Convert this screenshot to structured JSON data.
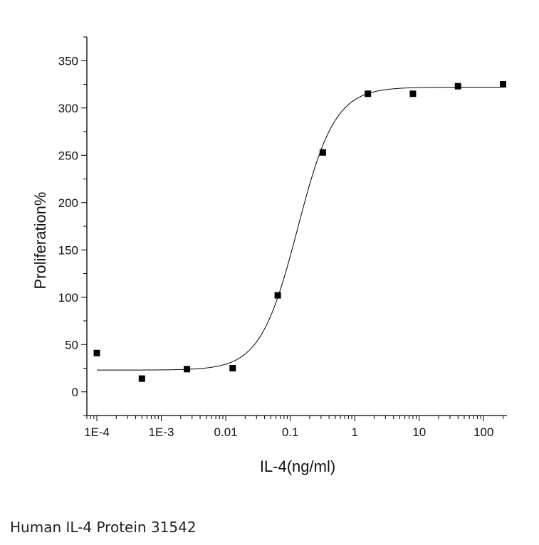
{
  "caption": "Human IL-4 Protein 31542",
  "chart_data": {
    "type": "scatter",
    "xlabel": "IL-4(ng/ml)",
    "ylabel": "Proliferation%",
    "xscale": "log",
    "xlim": [
      7e-05,
      230
    ],
    "ylim": [
      -25,
      375
    ],
    "xticks": [
      {
        "value": 0.0001,
        "label": "1E-4"
      },
      {
        "value": 0.001,
        "label": "1E-3"
      },
      {
        "value": 0.01,
        "label": "0.01"
      },
      {
        "value": 0.1,
        "label": "0.1"
      },
      {
        "value": 1,
        "label": "1"
      },
      {
        "value": 10,
        "label": "10"
      },
      {
        "value": 100,
        "label": "100"
      }
    ],
    "yticks": [
      0,
      50,
      100,
      150,
      200,
      250,
      300,
      350
    ],
    "grid": false,
    "legend": "none",
    "series": [
      {
        "points": [
          {
            "x": 0.0001,
            "y": 41
          },
          {
            "x": 0.0005,
            "y": 14
          },
          {
            "x": 0.0025,
            "y": 24
          },
          {
            "x": 0.0128,
            "y": 25
          },
          {
            "x": 0.064,
            "y": 102
          },
          {
            "x": 0.32,
            "y": 253
          },
          {
            "x": 1.6,
            "y": 315
          },
          {
            "x": 8,
            "y": 315
          },
          {
            "x": 40,
            "y": 323
          },
          {
            "x": 200,
            "y": 325
          }
        ]
      }
    ],
    "fit_curve": {
      "model": "four-parameter logistic",
      "bottom": 23,
      "top": 322,
      "ec50": 0.13,
      "hill": 1.5,
      "x_range": [
        0.0001,
        200
      ]
    },
    "colors": {
      "axis": "#000000",
      "marker": "#000000",
      "curve": "#000000"
    }
  }
}
